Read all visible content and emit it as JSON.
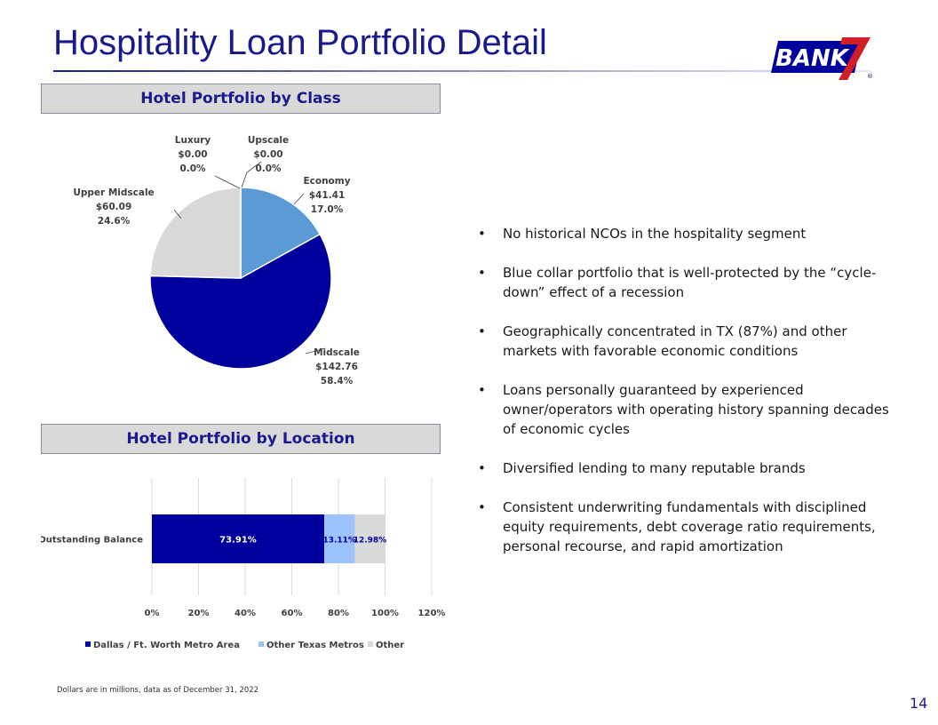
{
  "header": {
    "title": "Hospitality Loan Portfolio Detail",
    "logo_text": "BANK"
  },
  "colors": {
    "navy": "#00009c",
    "economy": "#5b9bd5",
    "upper_midscale": "#d9d9d9",
    "other_texas": "#9dc3ff",
    "other": "#d9d9d9",
    "title": "#1a1a8c"
  },
  "sections": {
    "by_class": "Hotel Portfolio by Class",
    "by_location": "Hotel Portfolio by Location"
  },
  "chart_data": [
    {
      "type": "pie",
      "slices": [
        {
          "name": "Upscale",
          "value": 0.0,
          "label_value": "$0.00",
          "label_pct": "0.0%",
          "percent": 0.0,
          "color": "#5b9bd5"
        },
        {
          "name": "Economy",
          "value": 41.41,
          "label_value": "$41.41",
          "label_pct": "17.0%",
          "percent": 17.0,
          "color": "#5b9bd5"
        },
        {
          "name": "Midscale",
          "value": 142.76,
          "label_value": "$142.76",
          "label_pct": "58.4%",
          "percent": 58.4,
          "color": "#00009c"
        },
        {
          "name": "Upper Midscale",
          "value": 60.09,
          "label_value": "$60.09",
          "label_pct": "24.6%",
          "percent": 24.6,
          "color": "#d9d9d9"
        },
        {
          "name": "Luxury",
          "value": 0.0,
          "label_value": "$0.00",
          "label_pct": "0.0%",
          "percent": 0.0,
          "color": "#bfbfbf"
        }
      ]
    },
    {
      "type": "bar",
      "orientation": "horizontal",
      "stacked": true,
      "categories": [
        "Outstanding Balance"
      ],
      "series": [
        {
          "name": "Dallas / Ft. Worth Metro Area",
          "values": [
            73.91
          ],
          "label": "73.91%",
          "color": "#00009c"
        },
        {
          "name": "Other Texas Metros",
          "values": [
            13.11
          ],
          "label": "13.11%",
          "color": "#9dc3ff"
        },
        {
          "name": "Other",
          "values": [
            12.98
          ],
          "label": "12.98%",
          "color": "#d9d9d9"
        }
      ],
      "xlim": [
        0,
        120
      ],
      "xticks": [
        "0%",
        "20%",
        "40%",
        "60%",
        "80%",
        "100%",
        "120%"
      ],
      "grid": true,
      "legend": "bottom"
    }
  ],
  "bullets": [
    "No historical NCOs in the hospitality segment",
    "Blue collar portfolio that is well-protected by the “cycle-down” effect of a recession",
    "Geographically concentrated in TX (87%) and other markets with favorable economic conditions",
    "Loans personally guaranteed by experienced owner/operators with operating history spanning decades of economic cycles",
    "Diversified lending to many reputable brands",
    "Consistent underwriting fundamentals with disciplined equity requirements, debt coverage ratio requirements, personal recourse, and rapid amortization"
  ],
  "footnote": "Dollars are in millions, data as of December 31, 2022",
  "page_number": "14"
}
